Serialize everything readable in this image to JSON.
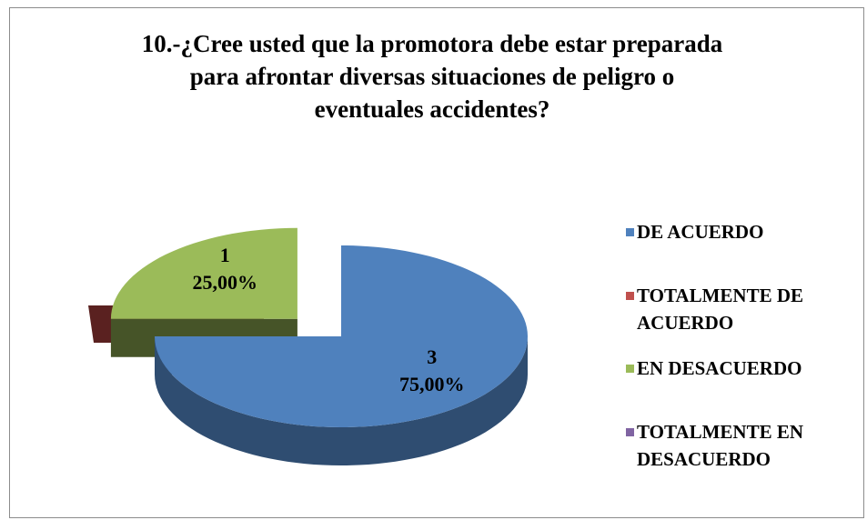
{
  "chart_data": {
    "type": "pie3d",
    "title": "10.-¿Cree usted que la promotora debe estar preparada para afrontar diversas situaciones de peligro o eventuales accidentes?",
    "categories": [
      "DE ACUERDO",
      "TOTALMENTE DE ACUERDO",
      "EN DESACUERDO",
      "TOTALMENTE EN DESACUERDO"
    ],
    "values": [
      3,
      0,
      1,
      0
    ],
    "percentages": [
      75,
      0,
      25,
      0
    ],
    "percentage_labels": [
      "75,00%",
      null,
      "25,00%",
      null
    ],
    "colors": [
      "#4f81bd",
      "#c0504d",
      "#9bbb59",
      "#8064a2"
    ],
    "exploded": [
      false,
      false,
      true,
      false
    ],
    "legend": "right"
  }
}
